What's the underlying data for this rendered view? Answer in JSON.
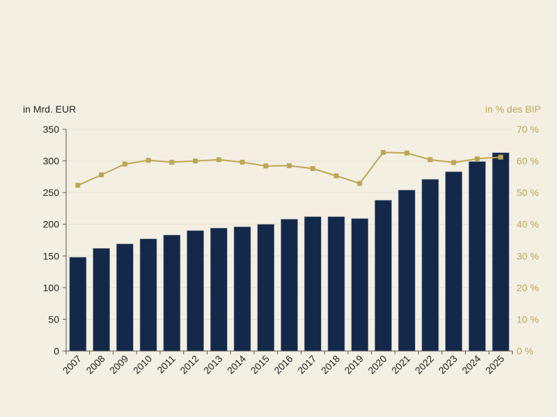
{
  "chart_data": {
    "type": "bar",
    "categories": [
      "2007",
      "2008",
      "2009",
      "2010",
      "2011",
      "2012",
      "2013",
      "2014",
      "2015",
      "2016",
      "2017",
      "2018",
      "2019",
      "2020",
      "2021",
      "2022",
      "2023",
      "2024",
      "2025"
    ],
    "series": [
      {
        "type": "bar",
        "axis": "left",
        "color": "#14284a",
        "values": [
          148,
          162,
          169,
          177,
          183,
          190,
          194,
          196,
          200,
          208,
          212,
          212,
          209,
          238,
          254,
          271,
          283,
          299,
          313
        ]
      },
      {
        "type": "line",
        "axis": "right",
        "color": "#bfa653",
        "values": [
          52.3,
          55.6,
          59.0,
          60.2,
          59.6,
          60.0,
          60.4,
          59.6,
          58.4,
          58.5,
          57.6,
          55.3,
          52.9,
          62.7,
          62.5,
          60.4,
          59.5,
          60.7,
          61.2
        ]
      }
    ],
    "ylabel_left": "in Mrd. EUR",
    "ylabel_right": "in % des BIP",
    "ylim_left": [
      0,
      350
    ],
    "ylim_right": [
      0,
      70
    ],
    "yticks_left": [
      "0",
      "50",
      "100",
      "150",
      "200",
      "250",
      "300",
      "350"
    ],
    "yticks_right": [
      "0 %",
      "10 %",
      "20 %",
      "30 %",
      "40 %",
      "50 %",
      "60 %",
      "70 %"
    ],
    "grid": true,
    "colors": {
      "background": "#f3efe3",
      "bar": "#14284a",
      "line": "#bfa653",
      "grid": "#e4e0d4"
    }
  }
}
